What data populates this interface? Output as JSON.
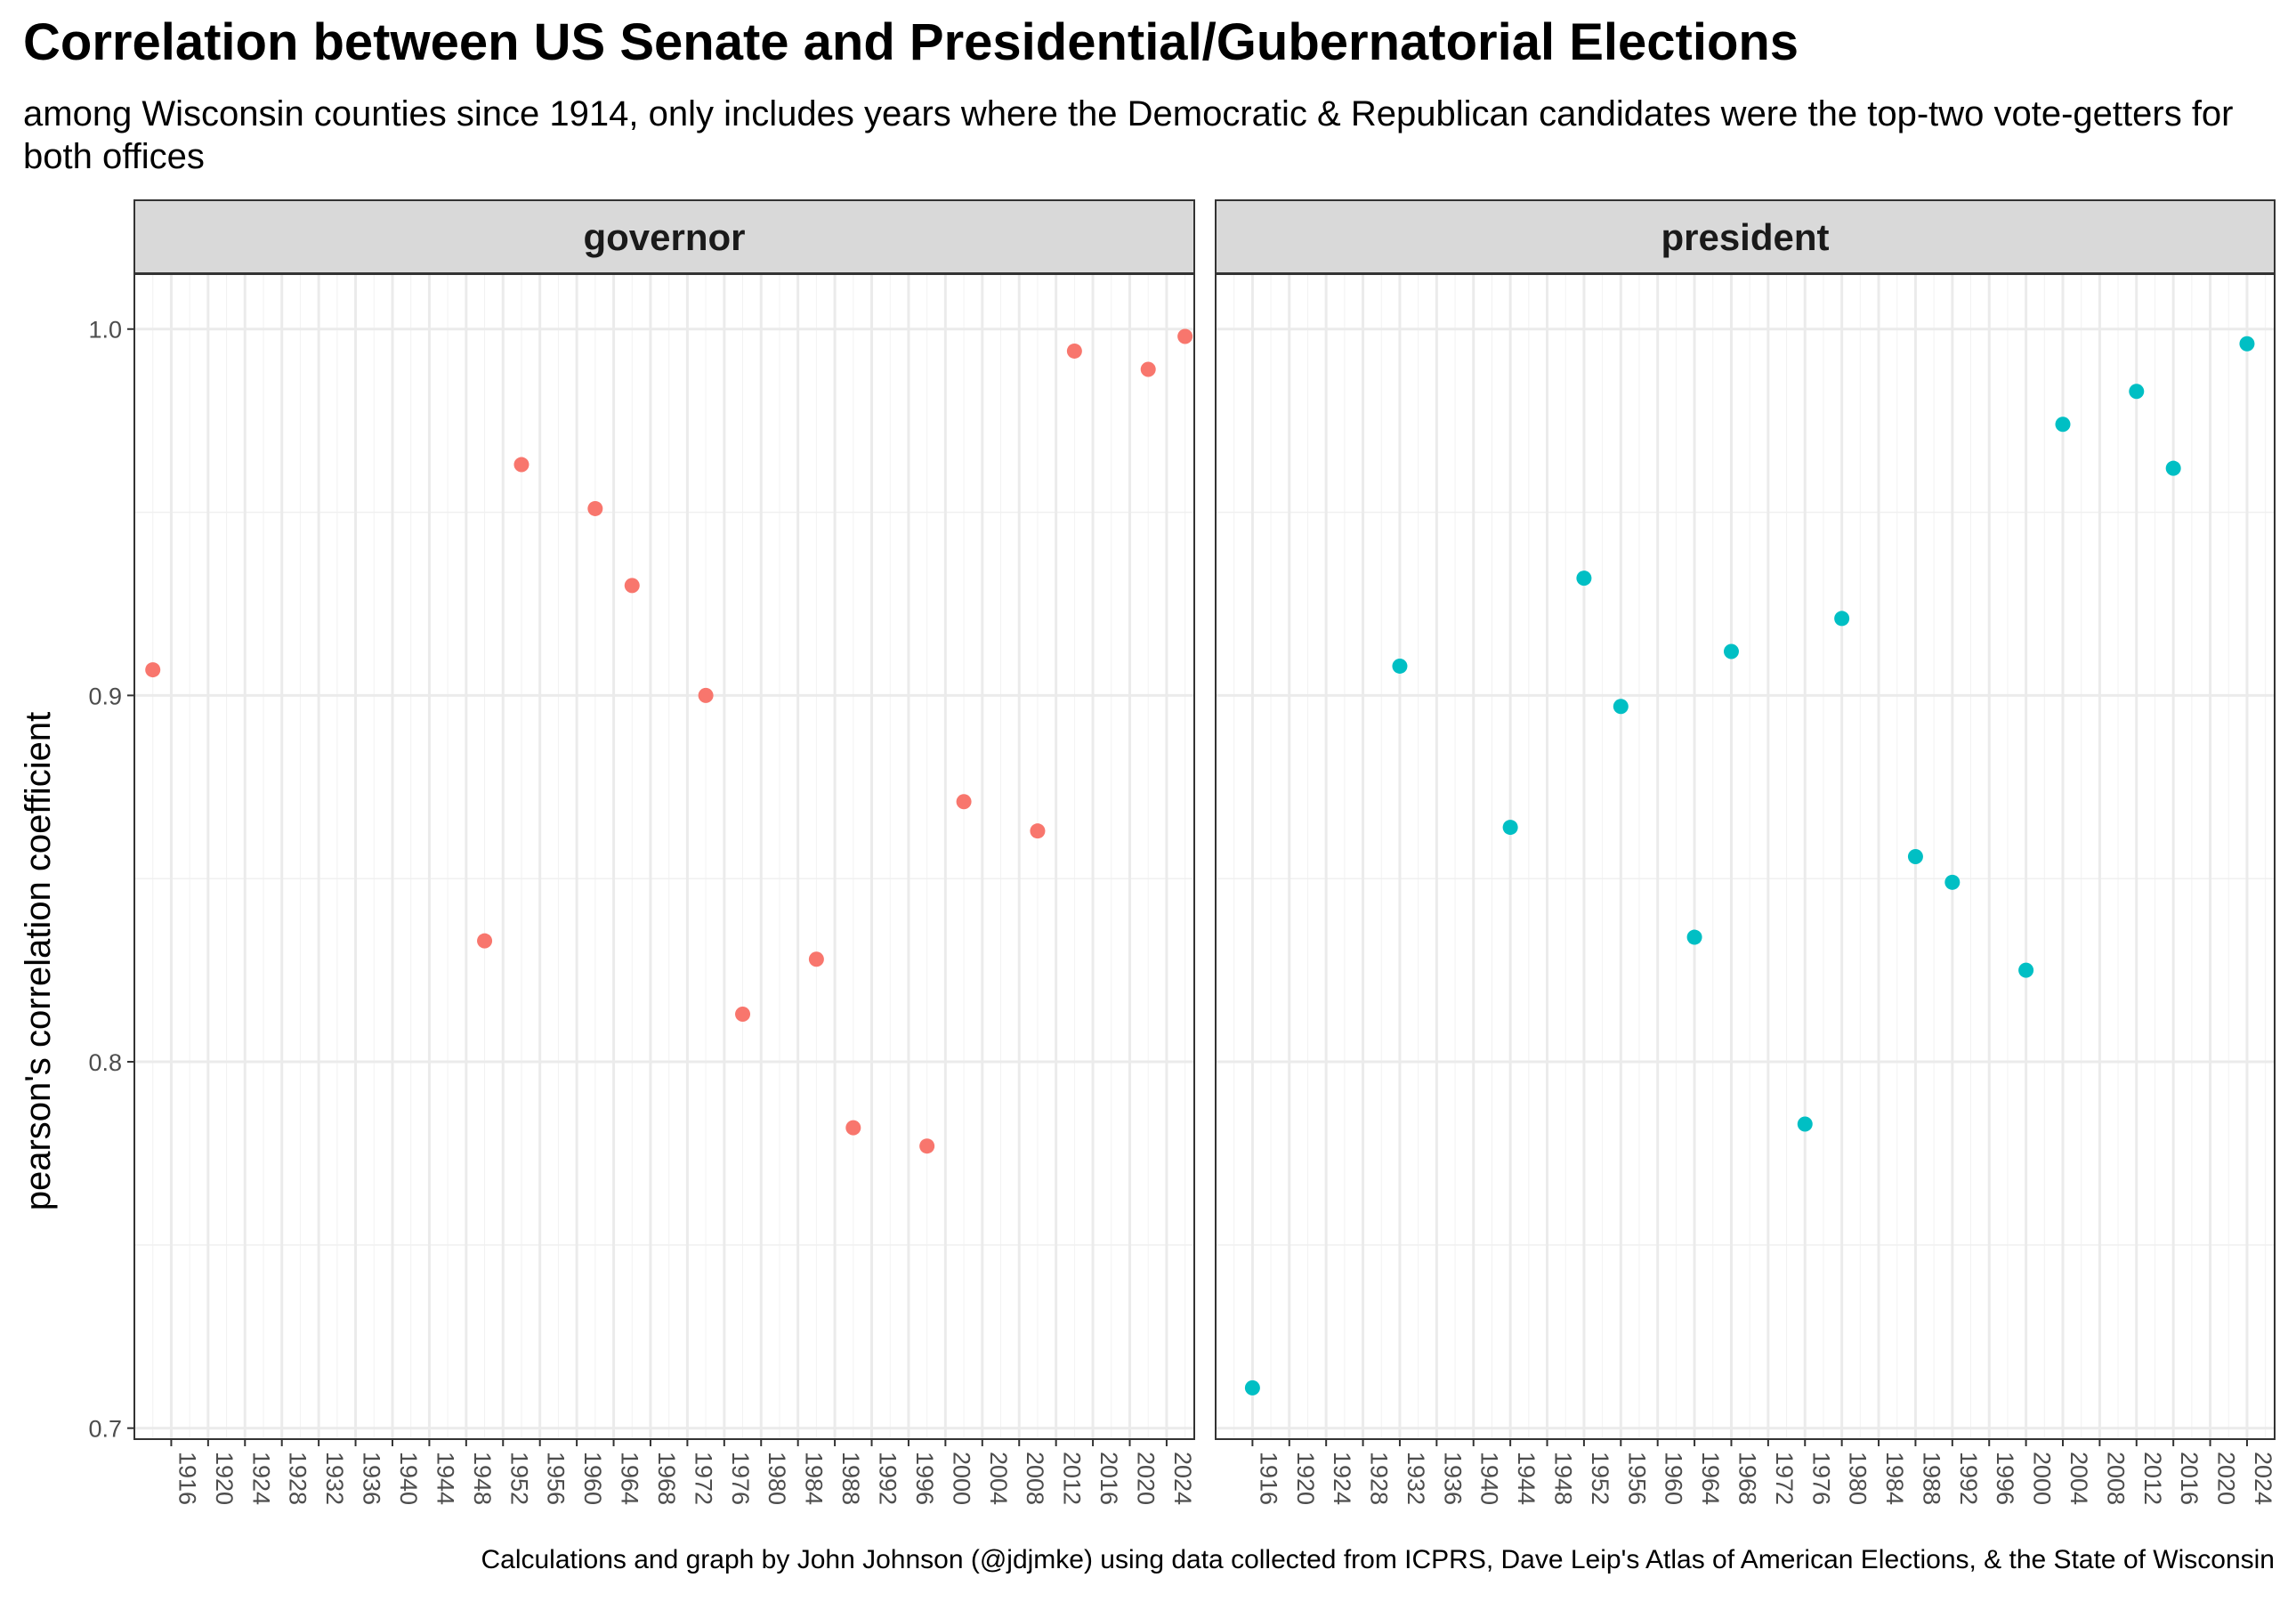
{
  "chart_data": {
    "type": "scatter",
    "title": "Correlation between US Senate and Presidential/Gubernatorial Elections",
    "subtitle": "among Wisconsin counties since 1914, only includes years where the Democratic & Republican candidates were the top-two vote-getters for both offices",
    "caption": "Calculations and graph by John Johnson (@jdjmke) using data collected from ICPRS, Dave Leip's Atlas of American Elections, & the State of Wisconsin",
    "ylabel": "pearson's correlation coefficient",
    "xlabel": "",
    "ylim": [
      0.697,
      1.015
    ],
    "xlim": [
      1912,
      2027
    ],
    "y_ticks": [
      "0.7",
      "0.8",
      "0.9",
      "1.0"
    ],
    "x_ticks": [
      "1916",
      "1920",
      "1924",
      "1928",
      "1932",
      "1936",
      "1940",
      "1944",
      "1948",
      "1952",
      "1956",
      "1960",
      "1964",
      "1968",
      "1972",
      "1976",
      "1980",
      "1984",
      "1988",
      "1992",
      "1996",
      "2000",
      "2004",
      "2008",
      "2012",
      "2016",
      "2020",
      "2024"
    ],
    "grid": true,
    "legend": "none",
    "panels": [
      {
        "name": "governor",
        "color": "#F8766D",
        "x": [
          1914,
          1950,
          1954,
          1962,
          1966,
          1974,
          1978,
          1986,
          1990,
          1998,
          2002,
          2010,
          2014,
          2022,
          2026
        ],
        "y": [
          0.907,
          0.833,
          0.963,
          0.951,
          0.93,
          0.9,
          0.813,
          0.828,
          0.782,
          0.777,
          0.871,
          0.863,
          0.994,
          0.989,
          0.998
        ]
      },
      {
        "name": "president",
        "color": "#00BFC4",
        "x": [
          1916,
          1932,
          1944,
          1952,
          1956,
          1964,
          1968,
          1976,
          1980,
          1988,
          1992,
          2000,
          2004,
          2012,
          2016,
          2024
        ],
        "y": [
          0.711,
          0.908,
          0.864,
          0.932,
          0.897,
          0.834,
          0.912,
          0.783,
          0.921,
          0.856,
          0.849,
          0.825,
          0.974,
          0.983,
          0.962,
          0.996
        ]
      }
    ]
  }
}
